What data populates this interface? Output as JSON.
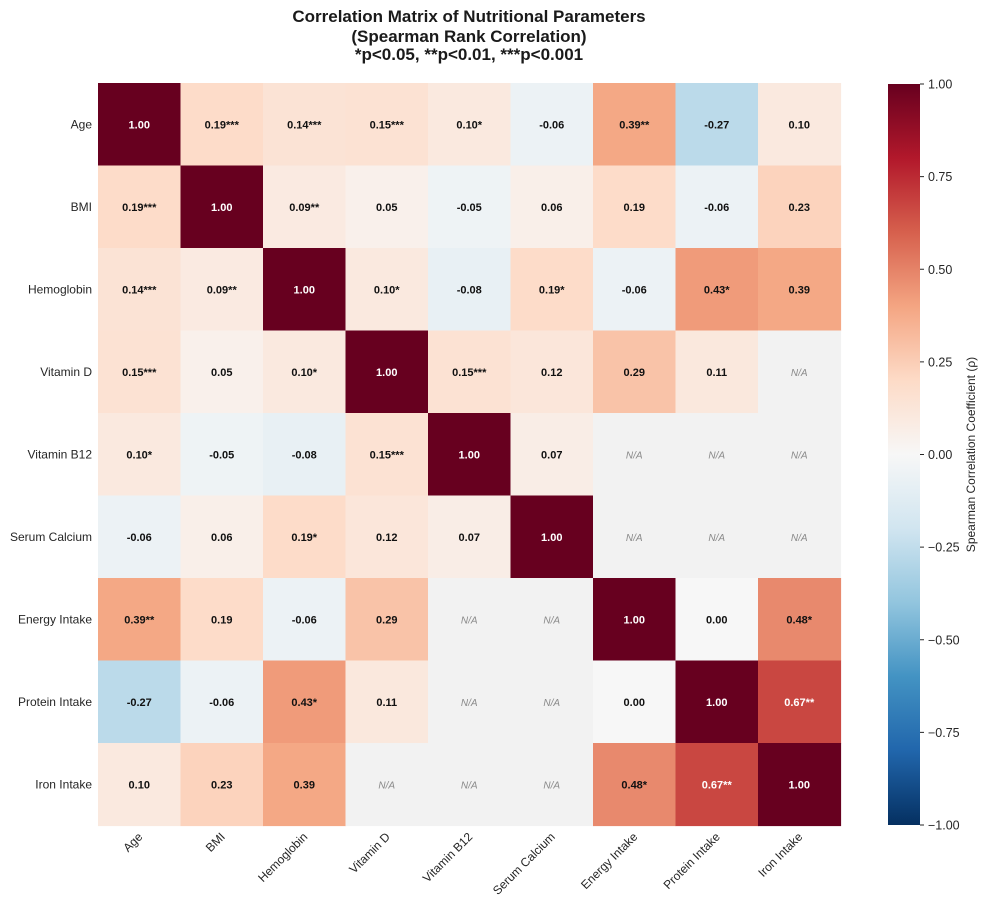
{
  "title": {
    "line1": "Correlation Matrix of Nutritional Parameters",
    "line2": "(Spearman Rank Correlation)",
    "line3": "*p<0.05, **p<0.01, ***p<0.001"
  },
  "chart_data": {
    "type": "heatmap",
    "title": "Correlation Matrix of Nutritional Parameters (Spearman Rank Correlation) *p<0.05, **p<0.01, ***p<0.001",
    "labels": [
      "Age",
      "BMI",
      "Hemoglobin",
      "Vitamin D",
      "Vitamin B12",
      "Serum Calcium",
      "Energy Intake",
      "Protein Intake",
      "Iron Intake"
    ],
    "values": [
      [
        1.0,
        0.19,
        0.14,
        0.15,
        0.1,
        -0.06,
        0.39,
        -0.27,
        0.1
      ],
      [
        0.19,
        1.0,
        0.09,
        0.05,
        -0.05,
        0.06,
        0.19,
        -0.06,
        0.23
      ],
      [
        0.14,
        0.09,
        1.0,
        0.1,
        -0.08,
        0.19,
        -0.06,
        0.43,
        0.39
      ],
      [
        0.15,
        0.05,
        0.1,
        1.0,
        0.15,
        0.12,
        0.29,
        0.11,
        null
      ],
      [
        0.1,
        -0.05,
        -0.08,
        0.15,
        1.0,
        0.07,
        null,
        null,
        null
      ],
      [
        -0.06,
        0.06,
        0.19,
        0.12,
        0.07,
        1.0,
        null,
        null,
        null
      ],
      [
        0.39,
        0.19,
        -0.06,
        0.29,
        null,
        null,
        1.0,
        0.0,
        0.48
      ],
      [
        -0.27,
        -0.06,
        0.43,
        0.11,
        null,
        null,
        0.0,
        1.0,
        0.67
      ],
      [
        0.1,
        0.23,
        0.39,
        null,
        null,
        null,
        0.48,
        0.67,
        1.0
      ]
    ],
    "annotations": [
      [
        "1.00",
        "0.19***",
        "0.14***",
        "0.15***",
        "0.10*",
        "-0.06",
        "0.39**",
        "-0.27",
        "0.10"
      ],
      [
        "0.19***",
        "1.00",
        "0.09**",
        "0.05",
        "-0.05",
        "0.06",
        "0.19",
        "-0.06",
        "0.23"
      ],
      [
        "0.14***",
        "0.09**",
        "1.00",
        "0.10*",
        "-0.08",
        "0.19*",
        "-0.06",
        "0.43*",
        "0.39"
      ],
      [
        "0.15***",
        "0.05",
        "0.10*",
        "1.00",
        "0.15***",
        "0.12",
        "0.29",
        "0.11",
        "N/A"
      ],
      [
        "0.10*",
        "-0.05",
        "-0.08",
        "0.15***",
        "1.00",
        "0.07",
        "N/A",
        "N/A",
        "N/A"
      ],
      [
        "-0.06",
        "0.06",
        "0.19*",
        "0.12",
        "0.07",
        "1.00",
        "N/A",
        "N/A",
        "N/A"
      ],
      [
        "0.39**",
        "0.19",
        "-0.06",
        "0.29",
        "N/A",
        "N/A",
        "1.00",
        "0.00",
        "0.48*"
      ],
      [
        "-0.27",
        "-0.06",
        "0.43*",
        "0.11",
        "N/A",
        "N/A",
        "0.00",
        "1.00",
        "0.67**"
      ],
      [
        "0.10",
        "0.23",
        "0.39",
        "N/A",
        "N/A",
        "N/A",
        "0.48*",
        "0.67**",
        "1.00"
      ]
    ],
    "na_text": "N/A",
    "colormap": "RdBu_r",
    "vmin": -1.0,
    "vmax": 1.0,
    "na_color": "#f2f2f2",
    "colorbar": {
      "label": "Spearman Correlation Coefficient (ρ)",
      "ticks": [
        1.0,
        0.75,
        0.5,
        0.25,
        0.0,
        -0.25,
        -0.5,
        -0.75,
        -1.0
      ],
      "tick_labels": [
        "1.00",
        "0.75",
        "0.50",
        "0.25",
        "0.00",
        "−0.25",
        "−0.50",
        "−0.75",
        "−1.00"
      ],
      "placement": "right"
    },
    "colors": {
      "cmap_stops": [
        "#053061",
        "#2166ac",
        "#4393c3",
        "#92c5de",
        "#d1e5f0",
        "#f7f7f7",
        "#fddbc7",
        "#f4a582",
        "#d6604d",
        "#b2182b",
        "#67001f"
      ]
    }
  }
}
